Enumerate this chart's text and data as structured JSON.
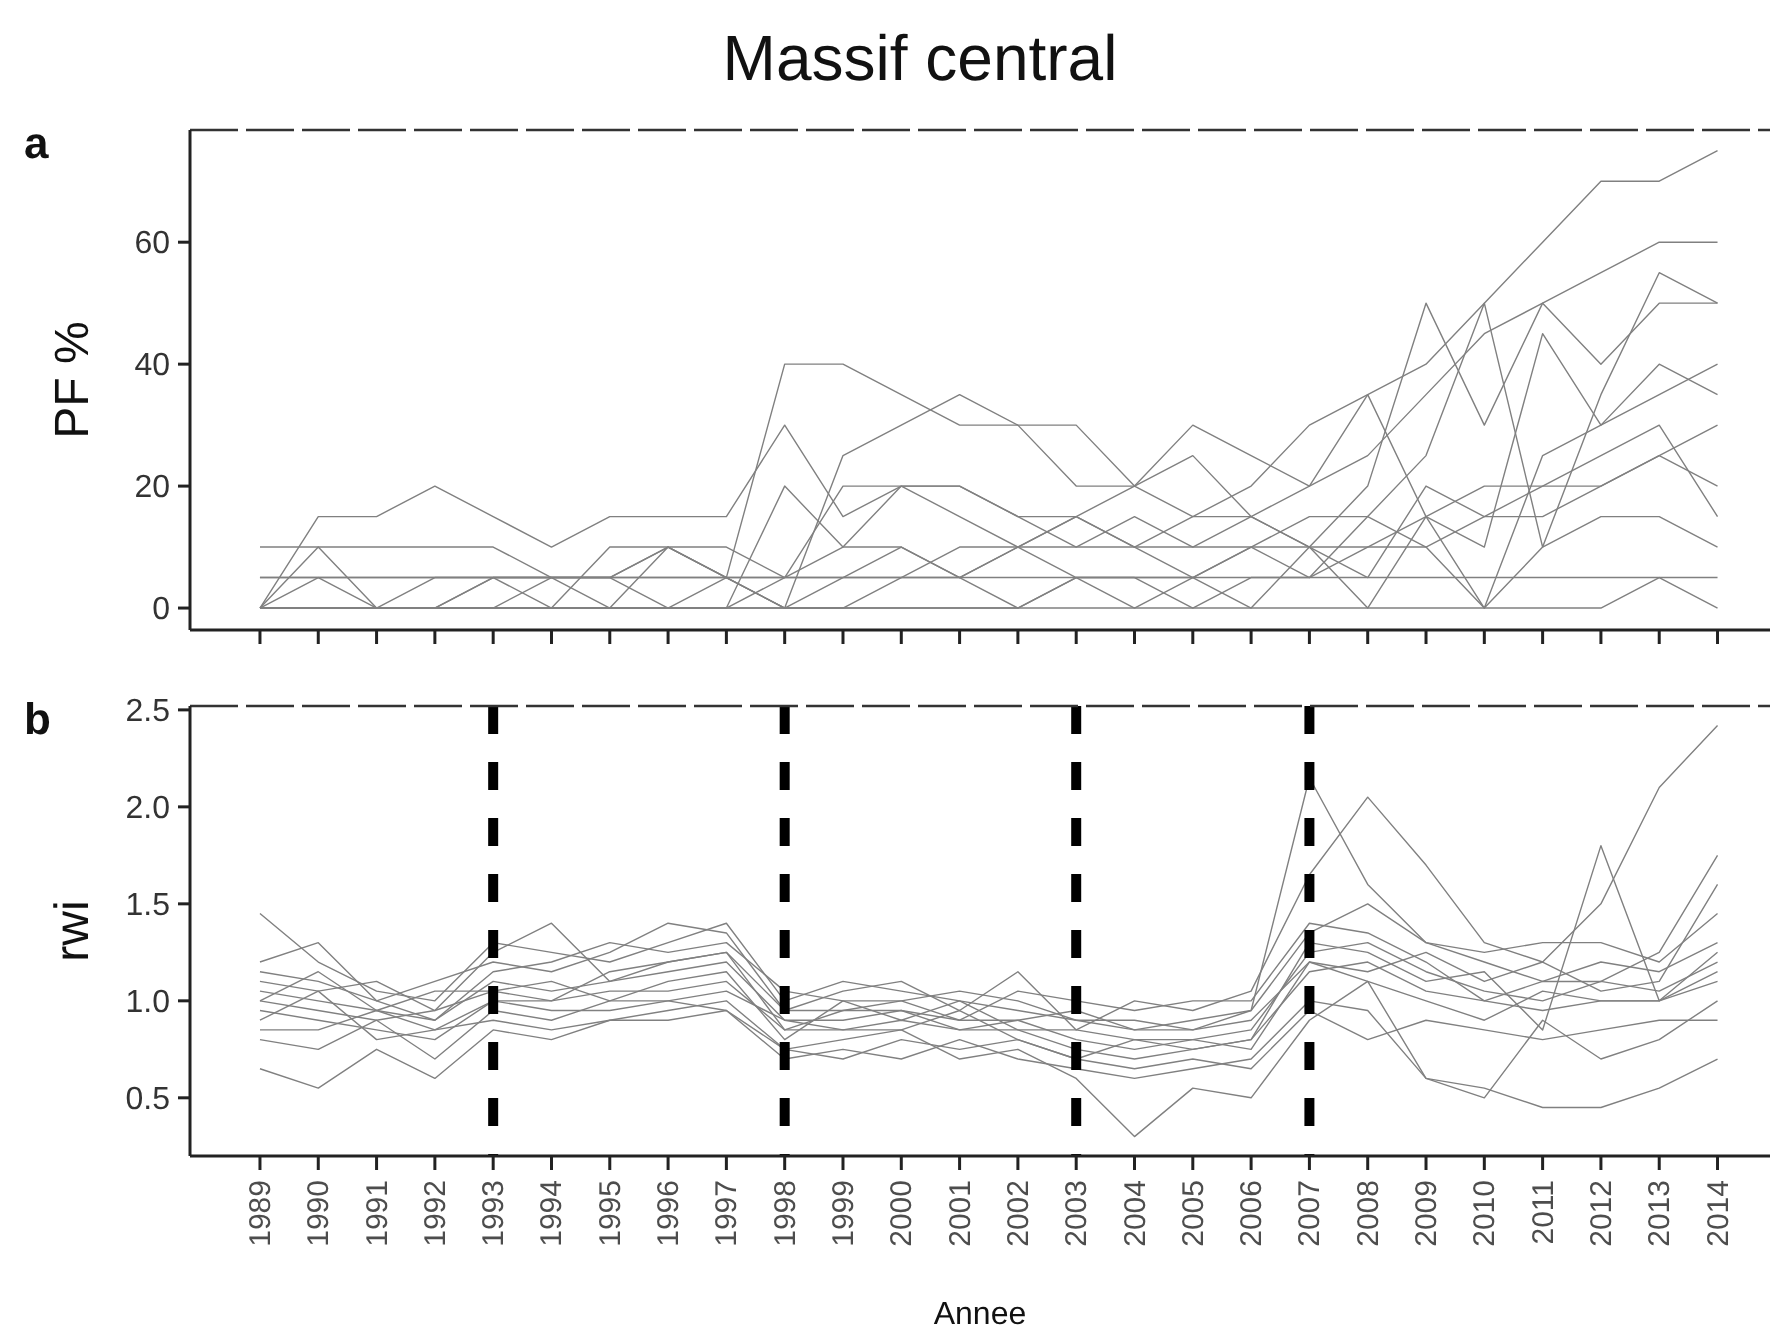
{
  "chart_data": [
    {
      "type": "line",
      "title": "Massif central",
      "ylabel": "PF %",
      "annotations": [
        "a"
      ],
      "x": [
        1989,
        1990,
        1991,
        1992,
        1993,
        1994,
        1995,
        1996,
        1997,
        1998,
        1999,
        2000,
        2001,
        2002,
        2003,
        2004,
        2005,
        2006,
        2007,
        2008,
        2009,
        2010,
        2011,
        2012,
        2013,
        2014
      ],
      "xlim": [
        1987.8,
        2014.9
      ],
      "xticks": [
        1989,
        1990,
        1991,
        1992,
        1993,
        1994,
        1995,
        1996,
        1997,
        1998,
        1999,
        2000,
        2001,
        2002,
        2003,
        2004,
        2005,
        2006,
        2007,
        2008,
        2009,
        2010,
        2011,
        2012,
        2013,
        2014
      ],
      "ylim": [
        -3.6,
        78.4
      ],
      "yticks": [
        0,
        20,
        40,
        60
      ],
      "tick_labels": "y",
      "grid": false,
      "series": [
        {
          "color": "#808080",
          "values": [
            0,
            15,
            15,
            20,
            15,
            10,
            15,
            15,
            15,
            30,
            15,
            20,
            20,
            15,
            15,
            20,
            15,
            20,
            30,
            35,
            40,
            50,
            60,
            70,
            70,
            75
          ]
        },
        {
          "color": "#808080",
          "values": [
            10,
            10,
            10,
            10,
            10,
            5,
            5,
            10,
            5,
            40,
            40,
            35,
            30,
            30,
            20,
            20,
            25,
            15,
            10,
            20,
            50,
            30,
            50,
            40,
            50,
            50
          ]
        },
        {
          "color": "#808080",
          "values": [
            5,
            5,
            0,
            0,
            5,
            5,
            5,
            5,
            5,
            0,
            25,
            30,
            35,
            30,
            30,
            20,
            30,
            25,
            20,
            25,
            35,
            45,
            50,
            55,
            60,
            60
          ]
        },
        {
          "color": "#808080",
          "values": [
            0,
            10,
            0,
            0,
            0,
            0,
            0,
            10,
            10,
            5,
            20,
            20,
            15,
            10,
            15,
            10,
            5,
            10,
            15,
            15,
            25,
            50,
            10,
            35,
            55,
            50
          ]
        },
        {
          "color": "#808080",
          "values": [
            0,
            5,
            5,
            5,
            5,
            5,
            0,
            0,
            0,
            20,
            10,
            20,
            20,
            15,
            10,
            15,
            10,
            15,
            20,
            35,
            15,
            10,
            45,
            30,
            40,
            35
          ]
        },
        {
          "color": "#808080",
          "values": [
            0,
            0,
            0,
            5,
            5,
            0,
            10,
            10,
            5,
            0,
            5,
            10,
            5,
            10,
            15,
            10,
            15,
            15,
            10,
            5,
            20,
            15,
            15,
            20,
            25,
            30
          ]
        },
        {
          "color": "#808080",
          "values": [
            5,
            5,
            5,
            5,
            5,
            5,
            5,
            5,
            5,
            5,
            5,
            5,
            5,
            5,
            5,
            5,
            5,
            5,
            5,
            5,
            5,
            5,
            5,
            5,
            5,
            5
          ]
        },
        {
          "color": "#808080",
          "values": [
            0,
            0,
            0,
            0,
            0,
            0,
            0,
            0,
            5,
            5,
            5,
            5,
            10,
            10,
            10,
            10,
            10,
            10,
            10,
            10,
            15,
            20,
            20,
            20,
            25,
            20
          ]
        },
        {
          "color": "#808080",
          "values": [
            0,
            0,
            0,
            0,
            0,
            5,
            5,
            0,
            0,
            5,
            10,
            10,
            5,
            0,
            5,
            5,
            0,
            5,
            5,
            10,
            10,
            0,
            10,
            15,
            15,
            10
          ]
        },
        {
          "color": "#808080",
          "values": [
            0,
            0,
            0,
            0,
            5,
            5,
            5,
            10,
            5,
            0,
            0,
            5,
            5,
            10,
            5,
            0,
            5,
            0,
            10,
            0,
            15,
            0,
            25,
            30,
            35,
            40
          ]
        },
        {
          "color": "#808080",
          "values": [
            0,
            0,
            0,
            0,
            0,
            0,
            0,
            0,
            0,
            0,
            0,
            0,
            0,
            0,
            5,
            5,
            5,
            10,
            5,
            15,
            10,
            15,
            20,
            25,
            30,
            15
          ]
        },
        {
          "color": "#808080",
          "values": [
            0,
            0,
            0,
            0,
            0,
            0,
            0,
            0,
            0,
            0,
            0,
            0,
            0,
            0,
            0,
            0,
            0,
            0,
            0,
            0,
            0,
            0,
            0,
            0,
            5,
            0
          ]
        }
      ]
    },
    {
      "type": "line",
      "ylabel": "rwi",
      "xlabel": "Annee",
      "annotations": [
        "b"
      ],
      "x": [
        1989,
        1990,
        1991,
        1992,
        1993,
        1994,
        1995,
        1996,
        1997,
        1998,
        1999,
        2000,
        2001,
        2002,
        2003,
        2004,
        2005,
        2006,
        2007,
        2008,
        2009,
        2010,
        2011,
        2012,
        2013,
        2014
      ],
      "xlim": [
        1987.8,
        2014.9
      ],
      "xticks": [
        1989,
        1990,
        1991,
        1992,
        1993,
        1994,
        1995,
        1996,
        1997,
        1998,
        1999,
        2000,
        2001,
        2002,
        2003,
        2004,
        2005,
        2006,
        2007,
        2008,
        2009,
        2010,
        2011,
        2012,
        2013,
        2014
      ],
      "ylim": [
        0.2,
        2.52
      ],
      "yticks": [
        {
          "value": 0.5,
          "label": "0.5"
        },
        {
          "value": 1,
          "label": "1.0"
        },
        {
          "value": 1.5,
          "label": "1.5"
        },
        {
          "value": 2,
          "label": "2.0"
        },
        {
          "value": 2.5,
          "label": "2.5"
        }
      ],
      "grid": false,
      "ref_lines": [
        {
          "axis": "x",
          "value": 1993,
          "color": "#000000",
          "line_style": "dashed"
        },
        {
          "axis": "x",
          "value": 1998,
          "color": "#000000",
          "line_style": "dashed"
        },
        {
          "axis": "x",
          "value": 2003,
          "color": "#000000",
          "line_style": "dashed"
        },
        {
          "axis": "x",
          "value": 2007,
          "color": "#000000",
          "line_style": "dashed"
        }
      ],
      "series": [
        {
          "color": "#808080",
          "values": [
            1.05,
            1.0,
            0.95,
            0.9,
            1.1,
            1.05,
            1.1,
            1.15,
            1.2,
            0.9,
            0.9,
            0.95,
            0.9,
            0.9,
            0.8,
            0.75,
            0.8,
            0.85,
            1.25,
            1.3,
            1.15,
            1.05,
            1.0,
            1.1,
            1.05,
            1.2
          ]
        },
        {
          "color": "#808080",
          "values": [
            1.45,
            1.2,
            1.05,
            1.0,
            1.3,
            1.25,
            1.2,
            1.3,
            1.4,
            1.0,
            1.1,
            1.05,
            1.0,
            0.95,
            0.9,
            0.85,
            0.9,
            0.95,
            2.15,
            1.6,
            1.3,
            1.2,
            1.1,
            1.2,
            1.15,
            1.3
          ]
        },
        {
          "color": "#808080",
          "values": [
            0.65,
            0.55,
            0.75,
            0.6,
            0.85,
            0.8,
            0.9,
            0.95,
            1.0,
            0.75,
            0.8,
            0.85,
            0.7,
            0.75,
            0.6,
            0.3,
            0.55,
            0.5,
            0.9,
            1.1,
            0.6,
            0.55,
            0.45,
            0.45,
            0.55,
            0.7
          ]
        },
        {
          "color": "#808080",
          "values": [
            1.2,
            1.3,
            1.0,
            1.1,
            1.2,
            1.15,
            1.25,
            1.4,
            1.35,
            0.95,
            1.05,
            1.1,
            0.95,
            1.15,
            0.85,
            1.0,
            0.95,
            1.05,
            1.65,
            2.05,
            1.7,
            1.3,
            1.2,
            1.5,
            2.1,
            2.42
          ]
        },
        {
          "color": "#808080",
          "values": [
            0.95,
            0.9,
            0.85,
            0.8,
            1.0,
            1.0,
            1.05,
            1.05,
            1.1,
            0.85,
            0.85,
            0.9,
            0.85,
            0.85,
            0.75,
            0.7,
            0.75,
            0.8,
            1.15,
            1.2,
            1.05,
            1.0,
            0.95,
            1.0,
            1.0,
            1.1
          ]
        },
        {
          "color": "#808080",
          "values": [
            0.8,
            0.75,
            0.9,
            0.7,
            0.95,
            0.9,
            1.0,
            1.0,
            0.95,
            0.7,
            0.75,
            0.7,
            0.8,
            0.7,
            0.65,
            0.6,
            0.65,
            0.7,
            1.0,
            0.95,
            0.6,
            0.5,
            0.9,
            0.7,
            0.8,
            1.0
          ]
        },
        {
          "color": "#808080",
          "values": [
            1.1,
            1.05,
            1.1,
            0.95,
            1.25,
            1.4,
            1.1,
            1.2,
            1.25,
            0.95,
            0.95,
            1.0,
            1.05,
            1.0,
            0.9,
            0.9,
            0.85,
            0.95,
            1.35,
            1.5,
            1.3,
            1.25,
            1.3,
            1.3,
            1.2,
            1.45
          ]
        },
        {
          "color": "#808080",
          "values": [
            1.0,
            0.95,
            0.9,
            0.95,
            1.05,
            1.1,
            1.0,
            1.1,
            1.15,
            0.8,
            1.0,
            0.9,
            1.0,
            0.85,
            0.85,
            0.8,
            0.8,
            0.75,
            1.2,
            1.1,
            1.0,
            0.9,
            1.05,
            1.0,
            1.0,
            1.15
          ]
        },
        {
          "color": "#808080",
          "values": [
            0.9,
            1.05,
            0.8,
            0.85,
            1.0,
            0.95,
            0.95,
            1.0,
            1.05,
            0.9,
            0.85,
            0.85,
            0.95,
            0.8,
            0.7,
            0.8,
            0.75,
            0.8,
            1.3,
            1.25,
            1.1,
            1.15,
            0.85,
            1.8,
            1.0,
            1.25
          ]
        },
        {
          "color": "#808080",
          "values": [
            1.15,
            1.1,
            1.0,
            0.9,
            1.15,
            1.2,
            1.3,
            1.25,
            1.3,
            1.05,
            1.0,
            1.0,
            0.9,
            1.05,
            1.0,
            0.95,
            1.0,
            1.0,
            1.4,
            1.35,
            1.2,
            1.0,
            1.1,
            1.1,
            1.25,
            1.75
          ]
        },
        {
          "color": "#808080",
          "values": [
            0.85,
            0.85,
            0.95,
            0.85,
            0.9,
            0.85,
            0.9,
            0.9,
            0.95,
            0.75,
            0.7,
            0.8,
            0.75,
            0.8,
            0.7,
            0.65,
            0.7,
            0.65,
            0.95,
            0.8,
            0.9,
            0.85,
            0.8,
            0.85,
            0.9,
            0.9
          ]
        },
        {
          "color": "#808080",
          "values": [
            1.0,
            1.15,
            0.95,
            1.05,
            1.05,
            1.0,
            1.15,
            1.2,
            1.25,
            0.85,
            0.95,
            0.95,
            0.85,
            0.9,
            0.95,
            0.85,
            0.85,
            0.9,
            1.2,
            1.15,
            1.25,
            1.1,
            1.2,
            1.05,
            1.1,
            1.6
          ]
        }
      ]
    }
  ]
}
